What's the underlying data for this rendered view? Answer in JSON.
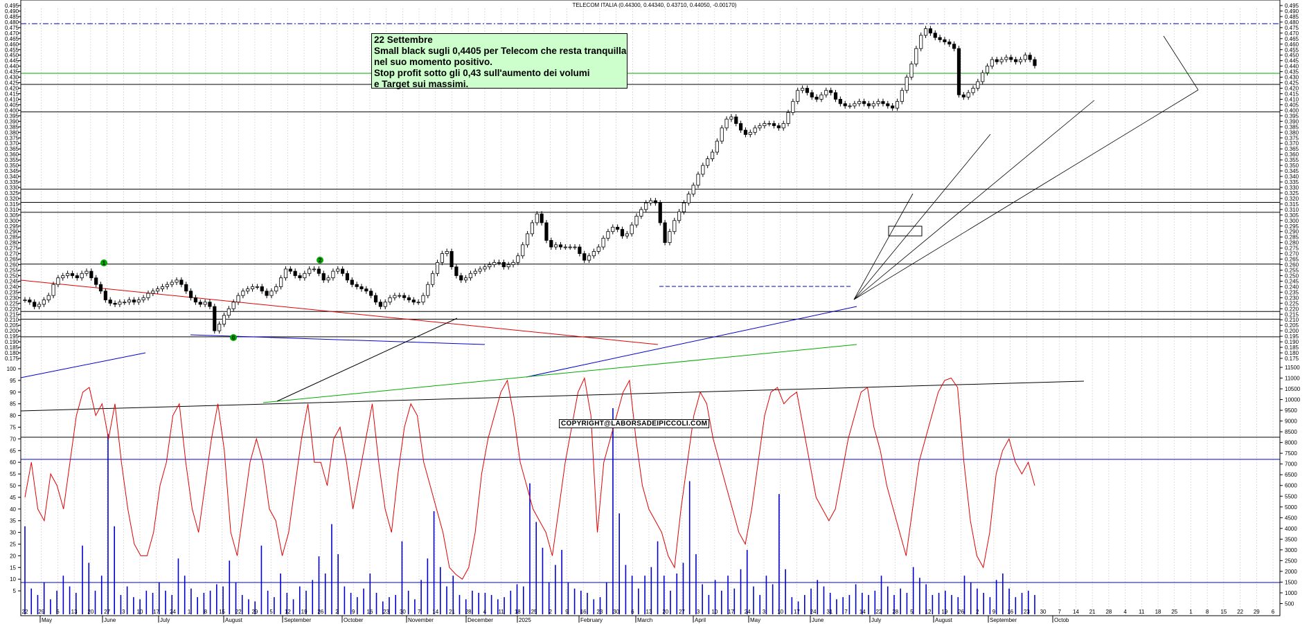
{
  "chart_data": {
    "type": "candlestick",
    "title": "TELECOM ITALIA (0.44300, 0.44340, 0.43710, 0.44050, -0.00170)",
    "annotation": {
      "lines": [
        "22  Settembre",
        "Small black sugli 0,4405 per Telecom che resta tranquilla",
        "nel suo momento positivo.",
        "Stop profit sotto gli 0,43 sull'aumento dei volumi",
        "e Target sui massimi."
      ]
    },
    "copyright": "COPYRIGHT@LABORSADEIPICCOLI.COM",
    "price_axis": {
      "ylim": [
        0.175,
        0.495
      ],
      "ticks": [
        "0.495",
        "0.490",
        "0.485",
        "0.480",
        "0.475",
        "0.470",
        "0.465",
        "0.460",
        "0.455",
        "0.450",
        "0.445",
        "0.440",
        "0.435",
        "0.430",
        "0.425",
        "0.420",
        "0.415",
        "0.410",
        "0.405",
        "0.400",
        "0.395",
        "0.390",
        "0.385",
        "0.380",
        "0.375",
        "0.370",
        "0.365",
        "0.360",
        "0.355",
        "0.350",
        "0.345",
        "0.340",
        "0.335",
        "0.330",
        "0.325",
        "0.320",
        "0.315",
        "0.310",
        "0.305",
        "0.300",
        "0.295",
        "0.290",
        "0.285",
        "0.280",
        "0.275",
        "0.270",
        "0.265",
        "0.260",
        "0.255",
        "0.250",
        "0.245",
        "0.240",
        "0.235",
        "0.230",
        "0.225",
        "0.220",
        "0.215",
        "0.210",
        "0.205",
        "0.200",
        "0.195",
        "0.190",
        "0.185",
        "0.180",
        "0.175"
      ]
    },
    "oscillator_axis": {
      "ylim": [
        0,
        100
      ],
      "ticks": [
        "100",
        "95",
        "90",
        "85",
        "80",
        "75",
        "70",
        "65",
        "60",
        "55",
        "50",
        "45",
        "40",
        "35",
        "30",
        "25",
        "20",
        "15",
        "10",
        "5"
      ]
    },
    "volume_axis": {
      "ylim": [
        0,
        11500
      ],
      "ticks": [
        "11500",
        "11000",
        "10500",
        "10000",
        "9500",
        "9000",
        "8500",
        "8000",
        "7500",
        "7000",
        "6500",
        "6000",
        "5500",
        "5000",
        "4500",
        "4000",
        "3500",
        "3000",
        "2500",
        "2000",
        "1500",
        "1000",
        "500"
      ]
    },
    "x_axis": {
      "day_ticks": [
        "22",
        "29",
        "6",
        "13",
        "20",
        "27",
        "3",
        "10",
        "17",
        "24",
        "1",
        "8",
        "15",
        "22",
        "29",
        "5",
        "12",
        "19",
        "26",
        "2",
        "9",
        "16",
        "23",
        "30",
        "7",
        "14",
        "21",
        "28",
        "4",
        "11",
        "18",
        "25",
        "2",
        "9",
        "16",
        "23",
        "30",
        "6",
        "13",
        "20",
        "27",
        "3",
        "10",
        "17",
        "24",
        "3",
        "10",
        "17",
        "24",
        "31",
        "7",
        "14",
        "22",
        "28",
        "5",
        "12",
        "19",
        "26",
        "2",
        "9",
        "16",
        "23",
        "30",
        "7",
        "14",
        "21",
        "28",
        "4",
        "11",
        "18",
        "25",
        "1",
        "8",
        "15",
        "22",
        "29",
        "6"
      ],
      "months": [
        "May",
        "June",
        "July",
        "August",
        "September",
        "October",
        "November",
        "December",
        "2025",
        "February",
        "March",
        "April",
        "May",
        "June",
        "July",
        "August",
        "September",
        "Octob"
      ]
    },
    "horizontal_levels": [
      {
        "value": 0.4785,
        "color": "#0000cc",
        "style": "dash-dot"
      },
      {
        "value": 0.4335,
        "color": "#00aa00",
        "style": "solid"
      },
      {
        "value": 0.4235,
        "color": "#000000",
        "style": "solid"
      },
      {
        "value": 0.3985,
        "color": "#000000",
        "style": "solid"
      },
      {
        "value": 0.3285,
        "color": "#000000",
        "style": "solid"
      },
      {
        "value": 0.3165,
        "color": "#000000",
        "style": "solid"
      },
      {
        "value": 0.3075,
        "color": "#000000",
        "style": "solid"
      },
      {
        "value": 0.2605,
        "color": "#000000",
        "style": "solid"
      },
      {
        "value": 0.2175,
        "color": "#000000",
        "style": "solid"
      },
      {
        "value": 0.2105,
        "color": "#000000",
        "style": "solid"
      },
      {
        "value": 0.1945,
        "color": "#000000",
        "style": "solid"
      }
    ],
    "wave_labels": [
      "1",
      "2",
      "0"
    ],
    "close_series": [
      0.228,
      0.226,
      0.222,
      0.224,
      0.228,
      0.232,
      0.242,
      0.248,
      0.25,
      0.252,
      0.25,
      0.248,
      0.252,
      0.254,
      0.248,
      0.242,
      0.236,
      0.228,
      0.225,
      0.224,
      0.226,
      0.226,
      0.228,
      0.226,
      0.228,
      0.23,
      0.234,
      0.236,
      0.238,
      0.24,
      0.242,
      0.244,
      0.246,
      0.242,
      0.236,
      0.23,
      0.226,
      0.224,
      0.226,
      0.222,
      0.2,
      0.206,
      0.214,
      0.22,
      0.226,
      0.232,
      0.236,
      0.238,
      0.24,
      0.24,
      0.236,
      0.232,
      0.236,
      0.24,
      0.248,
      0.256,
      0.254,
      0.25,
      0.248,
      0.252,
      0.256,
      0.256,
      0.252,
      0.246,
      0.248,
      0.254,
      0.256,
      0.252,
      0.246,
      0.242,
      0.24,
      0.238,
      0.236,
      0.232,
      0.226,
      0.222,
      0.226,
      0.23,
      0.232,
      0.232,
      0.23,
      0.228,
      0.226,
      0.226,
      0.232,
      0.242,
      0.252,
      0.262,
      0.27,
      0.272,
      0.258,
      0.25,
      0.246,
      0.248,
      0.252,
      0.254,
      0.256,
      0.258,
      0.26,
      0.262,
      0.262,
      0.258,
      0.26,
      0.262,
      0.268,
      0.278,
      0.288,
      0.298,
      0.306,
      0.298,
      0.282,
      0.276,
      0.278,
      0.276,
      0.276,
      0.276,
      0.276,
      0.27,
      0.264,
      0.268,
      0.272,
      0.276,
      0.284,
      0.29,
      0.294,
      0.292,
      0.286,
      0.288,
      0.296,
      0.304,
      0.31,
      0.316,
      0.318,
      0.316,
      0.298,
      0.28,
      0.29,
      0.3,
      0.308,
      0.316,
      0.324,
      0.332,
      0.342,
      0.35,
      0.356,
      0.362,
      0.372,
      0.384,
      0.392,
      0.394,
      0.388,
      0.382,
      0.378,
      0.38,
      0.384,
      0.386,
      0.388,
      0.388,
      0.386,
      0.384,
      0.388,
      0.398,
      0.408,
      0.418,
      0.42,
      0.416,
      0.412,
      0.41,
      0.414,
      0.418,
      0.416,
      0.41,
      0.406,
      0.404,
      0.404,
      0.406,
      0.408,
      0.406,
      0.404,
      0.406,
      0.408,
      0.406,
      0.404,
      0.402,
      0.408,
      0.418,
      0.43,
      0.442,
      0.456,
      0.468,
      0.474,
      0.47,
      0.466,
      0.464,
      0.462,
      0.46,
      0.456,
      0.414,
      0.412,
      0.416,
      0.42,
      0.426,
      0.434,
      0.44,
      0.446,
      0.444,
      0.446,
      0.448,
      0.446,
      0.444,
      0.446,
      0.45,
      0.446,
      0.4405
    ],
    "oscillator_series": [
      45,
      60,
      40,
      35,
      55,
      50,
      40,
      60,
      80,
      90,
      92,
      80,
      85,
      70,
      85,
      60,
      40,
      25,
      20,
      20,
      30,
      50,
      60,
      80,
      85,
      60,
      40,
      30,
      50,
      70,
      85,
      65,
      30,
      20,
      40,
      60,
      70,
      60,
      40,
      35,
      20,
      30,
      50,
      70,
      85,
      60,
      60,
      50,
      70,
      75,
      60,
      40,
      55,
      70,
      85,
      60,
      40,
      30,
      55,
      75,
      85,
      80,
      60,
      50,
      40,
      30,
      15,
      12,
      10,
      15,
      30,
      55,
      70,
      80,
      90,
      95,
      80,
      60,
      50,
      40,
      35,
      30,
      20,
      40,
      60,
      75,
      90,
      96,
      80,
      30,
      60,
      70,
      80,
      90,
      95,
      70,
      50,
      40,
      35,
      30,
      20,
      15,
      40,
      60,
      80,
      90,
      85,
      70,
      60,
      50,
      40,
      30,
      25,
      40,
      60,
      80,
      90,
      92,
      85,
      88,
      90,
      75,
      60,
      45,
      40,
      35,
      40,
      55,
      70,
      80,
      90,
      92,
      75,
      65,
      50,
      40,
      30,
      20,
      40,
      60,
      70,
      80,
      90,
      95,
      96,
      92,
      60,
      35,
      20,
      15,
      30,
      55,
      65,
      70,
      60,
      55,
      60,
      50
    ],
    "volume_series": [
      4100,
      1200,
      900,
      1500,
      700,
      1100,
      1800,
      1300,
      1000,
      3200,
      2400,
      1100,
      1800,
      8400,
      4100,
      900,
      1300,
      800,
      700,
      1100,
      1000,
      1500,
      1100,
      900,
      2600,
      1800,
      1200,
      800,
      1000,
      1100,
      1400,
      1300,
      2500,
      1500,
      900,
      700,
      600,
      3200,
      1100,
      800,
      1900,
      1000,
      700,
      1300,
      1100,
      1600,
      2700,
      1900,
      4200,
      2800,
      1300,
      1000,
      800,
      1200,
      1900,
      1000,
      600,
      800,
      900,
      3400,
      1100,
      700,
      1600,
      2600,
      4800,
      2200,
      1300,
      1800,
      900,
      700,
      1100,
      1000,
      1000,
      900,
      700,
      800,
      1100,
      1400,
      1300,
      6100,
      4300,
      3100,
      1500,
      2300,
      3000,
      1500,
      1200,
      1100,
      1000,
      700,
      800,
      1500,
      9600,
      4700,
      2300,
      1800,
      1200,
      1800,
      2200,
      3400,
      1800,
      1100,
      1900,
      2400,
      6200,
      2800,
      1400,
      900,
      1600,
      1100,
      1800,
      1200,
      2100,
      3000,
      1300,
      900,
      1800,
      1400,
      5600,
      2100,
      800,
      600,
      900,
      1200,
      1600,
      1300,
      1000,
      700,
      800,
      900,
      1400,
      1000,
      900,
      1100,
      1800,
      1300,
      900,
      1200,
      1000,
      2200,
      1700,
      1400,
      900,
      1000,
      1100,
      900,
      800,
      1800,
      1500,
      1200,
      1000,
      800,
      1600,
      1900,
      1200,
      800,
      1000,
      1100,
      900
    ]
  }
}
